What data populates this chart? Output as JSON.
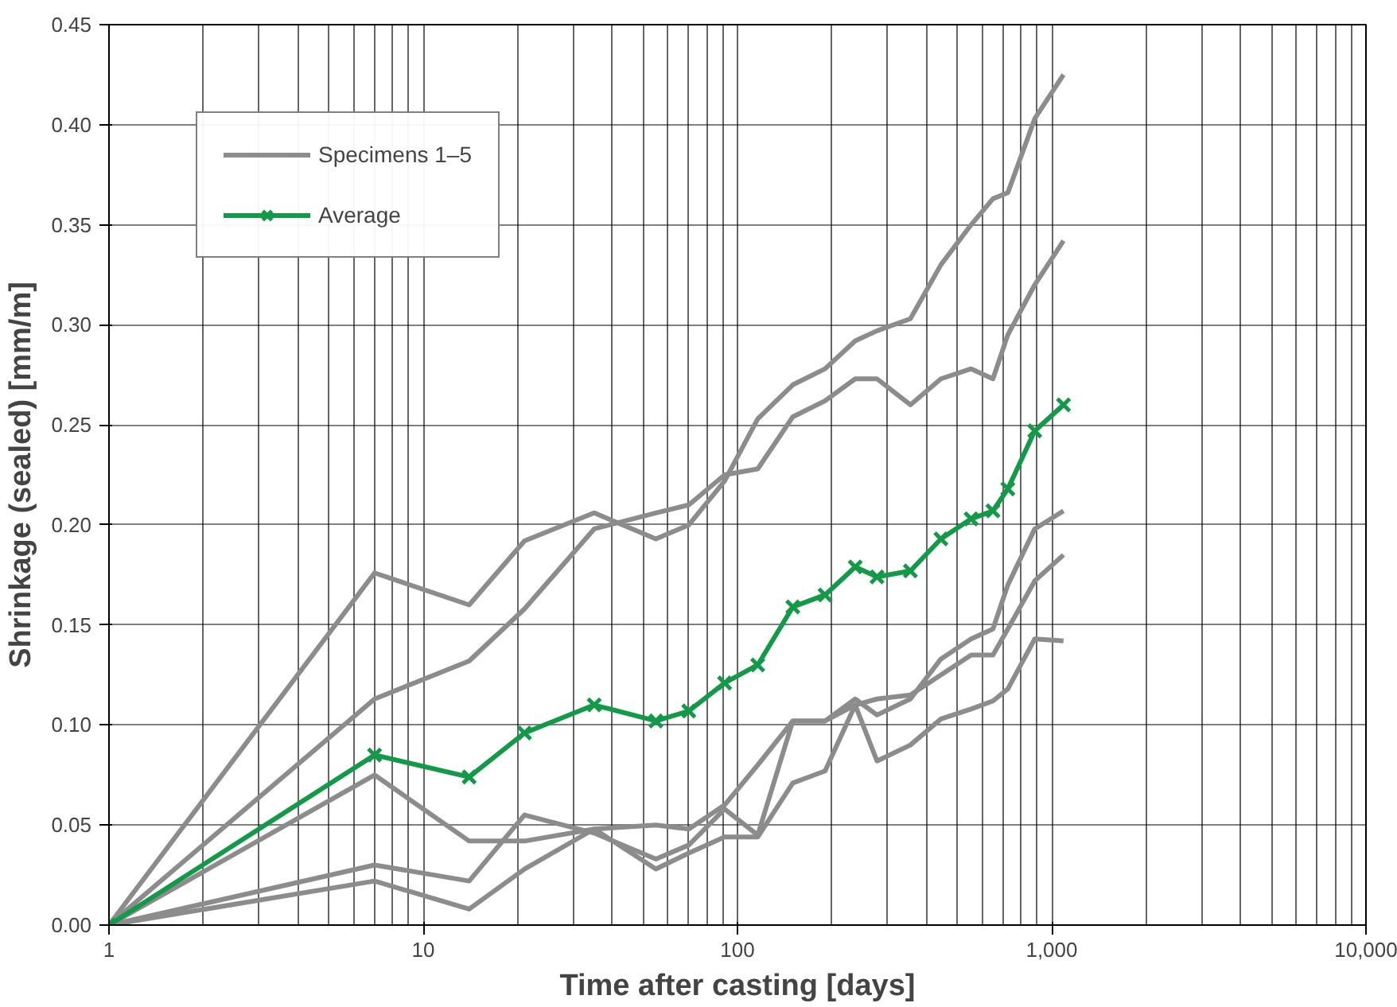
{
  "chart_data": {
    "type": "line",
    "xlabel": "Time after casting [days]",
    "ylabel": "Shrinkage (sealed) [mm/m]",
    "x": [
      1,
      7,
      14,
      21,
      35,
      55,
      70,
      91,
      116,
      150,
      190,
      237,
      278,
      355,
      444,
      554,
      650,
      725,
      883,
      1090
    ],
    "series": [
      {
        "name": "Specimens 1–5",
        "color": "#8c8c8c",
        "values": [
          0,
          0.176,
          0.16,
          0.192,
          0.206,
          0.193,
          0.2,
          0.222,
          0.253,
          0.27,
          0.278,
          0.292,
          0.297,
          0.303,
          0.33,
          0.35,
          0.363,
          0.366,
          0.403,
          0.425
        ]
      },
      {
        "color": "#8c8c8c",
        "values": [
          0,
          0.113,
          0.132,
          0.158,
          0.198,
          0.206,
          0.21,
          0.225,
          0.228,
          0.254,
          0.262,
          0.273,
          0.273,
          0.26,
          0.273,
          0.278,
          0.273,
          0.295,
          0.32,
          0.342
        ]
      },
      {
        "color": "#8c8c8c",
        "values": [
          0,
          0.075,
          0.042,
          0.042,
          0.048,
          0.05,
          0.048,
          0.06,
          0.08,
          0.102,
          0.102,
          0.113,
          0.105,
          0.113,
          0.133,
          0.143,
          0.148,
          0.17,
          0.198,
          0.207
        ]
      },
      {
        "color": "#8c8c8c",
        "values": [
          0,
          0.03,
          0.022,
          0.055,
          0.046,
          0.033,
          0.04,
          0.058,
          0.045,
          0.102,
          0.102,
          0.11,
          0.113,
          0.115,
          0.125,
          0.135,
          0.135,
          0.148,
          0.172,
          0.185
        ]
      },
      {
        "color": "#8c8c8c",
        "values": [
          0,
          0.022,
          0.008,
          0.028,
          0.048,
          0.028,
          0.036,
          0.044,
          0.044,
          0.071,
          0.077,
          0.11,
          0.082,
          0.09,
          0.103,
          0.108,
          0.112,
          0.118,
          0.143,
          0.142
        ]
      },
      {
        "name": "Average",
        "color": "#129a48",
        "marker": "cross",
        "values": [
          0,
          0.085,
          0.074,
          0.096,
          0.11,
          0.102,
          0.107,
          0.121,
          0.13,
          0.159,
          0.165,
          0.179,
          0.174,
          0.177,
          0.193,
          0.203,
          0.207,
          0.218,
          0.247,
          0.26
        ]
      }
    ],
    "log": "x",
    "xlim": [
      1,
      10000
    ],
    "xticks": [
      1,
      10,
      100,
      {
        "value": 1000,
        "label": "1,000"
      },
      {
        "value": 10000,
        "label": "10,000"
      }
    ],
    "ylim": [
      0,
      0.45
    ],
    "yticks": [
      {
        "value": 0,
        "label": "0.00"
      },
      {
        "value": 0.05,
        "label": "0.05"
      },
      {
        "value": 0.1,
        "label": "0.10"
      },
      {
        "value": 0.15,
        "label": "0.15"
      },
      {
        "value": 0.2,
        "label": "0.20"
      },
      {
        "value": 0.25,
        "label": "0.25"
      },
      {
        "value": 0.3,
        "label": "0.30"
      },
      {
        "value": 0.35,
        "label": "0.35"
      },
      {
        "value": 0.4,
        "label": "0.40"
      },
      {
        "value": 0.45,
        "label": "0.45"
      }
    ],
    "grid": true,
    "legend": "top left",
    "line_style": "solid"
  }
}
